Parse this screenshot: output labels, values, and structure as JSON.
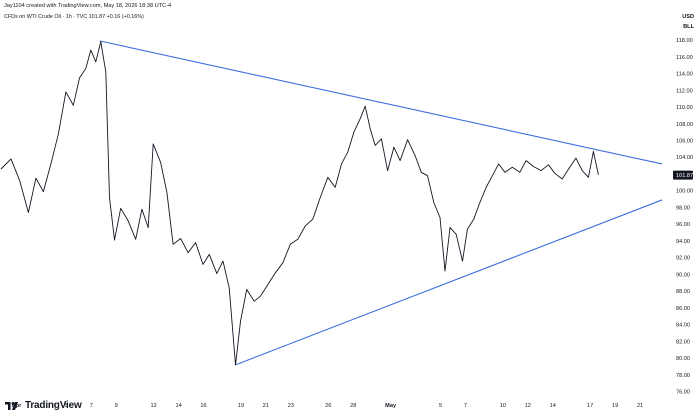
{
  "header": {
    "creator_line": "Jay1104 created with TradingView.com, May 18, 2026 18:38 UTC-4",
    "symbol_line": "CFDs on WTI Crude Oil · 1h · TVC 101.87 +0.16 (+0.16%)"
  },
  "axis_header": {
    "currency": "USD",
    "mode": "BLL"
  },
  "brand": {
    "name": "TradingView",
    "logo": "tradingview-logo-icon"
  },
  "colors": {
    "price_line": "#131722",
    "trendline": "#3d6fe0",
    "last_price_bg": "#131722",
    "grid_text": "#131722"
  },
  "chart_data": {
    "type": "line",
    "title": "CFDs on WTI Crude Oil",
    "xlabel": "",
    "ylabel": "",
    "ylim": [
      75.6,
      119.2
    ],
    "y_ticks": [
      "118.00",
      "116.00",
      "114.00",
      "112.00",
      "110.00",
      "108.00",
      "106.00",
      "104.00",
      "102.00",
      "100.00",
      "98.00",
      "96.00",
      "94.00",
      "92.00",
      "90.00",
      "88.00",
      "86.00",
      "84.00",
      "82.00",
      "80.00",
      "78.00",
      "76.00"
    ],
    "x_ticks": [
      {
        "label": "Apr",
        "day": 1,
        "bold": true
      },
      {
        "label": "5",
        "day": 5
      },
      {
        "label": "7",
        "day": 7
      },
      {
        "label": "9",
        "day": 9
      },
      {
        "label": "12",
        "day": 12
      },
      {
        "label": "14",
        "day": 14
      },
      {
        "label": "16",
        "day": 16
      },
      {
        "label": "19",
        "day": 19
      },
      {
        "label": "21",
        "day": 21
      },
      {
        "label": "23",
        "day": 23
      },
      {
        "label": "26",
        "day": 26
      },
      {
        "label": "28",
        "day": 28
      },
      {
        "label": "May",
        "day": 31,
        "bold": true
      },
      {
        "label": "5",
        "day": 35
      },
      {
        "label": "7",
        "day": 37
      },
      {
        "label": "10",
        "day": 40
      },
      {
        "label": "12",
        "day": 42
      },
      {
        "label": "14",
        "day": 44
      },
      {
        "label": "17",
        "day": 47
      },
      {
        "label": "19",
        "day": 49
      },
      {
        "label": "21",
        "day": 51
      }
    ],
    "last_price": {
      "value": 101.87,
      "label": "101.87"
    },
    "series": [
      {
        "values": [
          [
            0.0,
            102.6
          ],
          [
            0.8,
            103.8
          ],
          [
            1.5,
            101.2
          ],
          [
            2.2,
            97.4
          ],
          [
            2.8,
            101.5
          ],
          [
            3.4,
            99.9
          ],
          [
            4.0,
            103.2
          ],
          [
            4.6,
            106.8
          ],
          [
            5.2,
            111.8
          ],
          [
            5.8,
            110.2
          ],
          [
            6.3,
            113.5
          ],
          [
            6.8,
            114.6
          ],
          [
            7.2,
            116.8
          ],
          [
            7.6,
            115.4
          ],
          [
            8.0,
            117.8
          ],
          [
            8.4,
            114.2
          ],
          [
            8.7,
            99.2
          ],
          [
            9.1,
            94.1
          ],
          [
            9.6,
            97.9
          ],
          [
            10.2,
            96.4
          ],
          [
            10.8,
            94.2
          ],
          [
            11.3,
            97.8
          ],
          [
            11.8,
            95.6
          ],
          [
            12.2,
            105.6
          ],
          [
            12.8,
            103.4
          ],
          [
            13.3,
            99.8
          ],
          [
            13.8,
            93.6
          ],
          [
            14.4,
            94.3
          ],
          [
            15.0,
            92.6
          ],
          [
            15.6,
            93.8
          ],
          [
            16.2,
            91.2
          ],
          [
            16.7,
            92.4
          ],
          [
            17.3,
            90.1
          ],
          [
            17.8,
            91.6
          ],
          [
            18.3,
            88.4
          ],
          [
            18.8,
            79.2
          ],
          [
            19.2,
            84.4
          ],
          [
            19.7,
            88.2
          ],
          [
            20.3,
            86.8
          ],
          [
            20.8,
            87.4
          ],
          [
            21.4,
            88.8
          ],
          [
            22.0,
            90.2
          ],
          [
            22.6,
            91.4
          ],
          [
            23.2,
            93.6
          ],
          [
            23.8,
            94.2
          ],
          [
            24.4,
            95.8
          ],
          [
            25.0,
            96.6
          ],
          [
            25.6,
            99.2
          ],
          [
            26.2,
            101.6
          ],
          [
            26.8,
            100.4
          ],
          [
            27.3,
            103.2
          ],
          [
            27.8,
            104.6
          ],
          [
            28.3,
            107.0
          ],
          [
            28.8,
            108.6
          ],
          [
            29.2,
            110.1
          ],
          [
            29.6,
            107.4
          ],
          [
            30.0,
            105.4
          ],
          [
            30.5,
            106.2
          ],
          [
            31.0,
            102.4
          ],
          [
            31.5,
            105.2
          ],
          [
            32.0,
            103.6
          ],
          [
            32.6,
            106.1
          ],
          [
            33.2,
            104.2
          ],
          [
            33.7,
            102.2
          ],
          [
            34.2,
            101.8
          ],
          [
            34.7,
            98.6
          ],
          [
            35.2,
            96.8
          ],
          [
            35.6,
            90.4
          ],
          [
            36.0,
            95.6
          ],
          [
            36.5,
            94.8
          ],
          [
            37.0,
            91.6
          ],
          [
            37.4,
            95.4
          ],
          [
            37.9,
            96.6
          ],
          [
            38.4,
            98.6
          ],
          [
            38.9,
            100.4
          ],
          [
            39.4,
            101.8
          ],
          [
            39.9,
            103.2
          ],
          [
            40.4,
            102.2
          ],
          [
            41.0,
            102.8
          ],
          [
            41.6,
            102.2
          ],
          [
            42.1,
            103.6
          ],
          [
            42.7,
            102.9
          ],
          [
            43.3,
            102.4
          ],
          [
            43.9,
            103.1
          ],
          [
            44.4,
            102.1
          ],
          [
            45.0,
            101.4
          ],
          [
            45.6,
            102.8
          ],
          [
            46.1,
            103.9
          ],
          [
            46.6,
            102.4
          ],
          [
            47.1,
            101.6
          ],
          [
            47.5,
            104.7
          ],
          [
            47.9,
            101.9
          ]
        ]
      }
    ],
    "trendlines": [
      {
        "name": "upper",
        "points": [
          [
            7.9,
            117.9
          ],
          [
            53.0,
            103.2
          ]
        ]
      },
      {
        "name": "lower",
        "points": [
          [
            18.8,
            79.2
          ],
          [
            53.0,
            98.9
          ]
        ]
      }
    ]
  }
}
